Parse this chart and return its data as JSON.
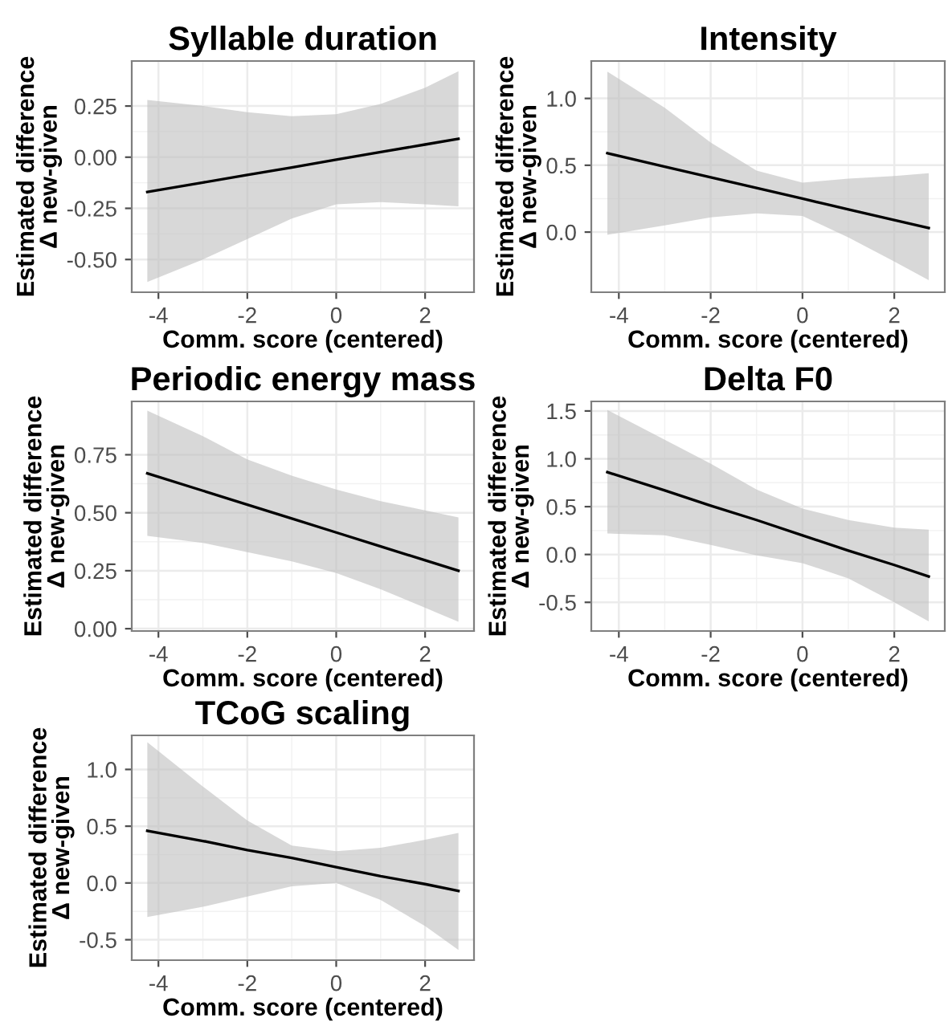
{
  "chart_data": [
    {
      "type": "line",
      "title": "Syllable duration",
      "xlabel": "Comm. score (centered)",
      "ylabel": "Estimated difference\nΔ new-given",
      "xlim": [
        -4.6,
        3.1
      ],
      "xticks": [
        -4,
        -2,
        0,
        2
      ],
      "ylim": [
        -0.66,
        0.47
      ],
      "yticks": [
        {
          "value": 0.25,
          "label": "0.25"
        },
        {
          "value": 0,
          "label": "0.00"
        },
        {
          "value": -0.25,
          "label": "-0.25"
        },
        {
          "value": -0.5,
          "label": "-0.50"
        }
      ],
      "grid": true,
      "series": [
        {
          "color": "#000000",
          "x": [
            -4.25,
            -3,
            -2,
            -1,
            0,
            1,
            2,
            2.75
          ],
          "values": [
            -0.17,
            -0.124,
            -0.087,
            -0.05,
            -0.012,
            0.025,
            0.062,
            0.09
          ],
          "upper": [
            0.28,
            0.25,
            0.22,
            0.2,
            0.21,
            0.26,
            0.34,
            0.42
          ],
          "lower": [
            -0.61,
            -0.5,
            -0.4,
            -0.3,
            -0.23,
            -0.22,
            -0.23,
            -0.24
          ]
        }
      ]
    },
    {
      "type": "line",
      "title": "Intensity",
      "xlabel": "Comm. score (centered)",
      "ylabel": "Estimated difference\nΔ new-given",
      "xlim": [
        -4.6,
        3.1
      ],
      "xticks": [
        -4,
        -2,
        0,
        2
      ],
      "ylim": [
        -0.45,
        1.28
      ],
      "yticks": [
        {
          "value": 0,
          "label": "0.0"
        },
        {
          "value": 0.5,
          "label": "0.5"
        },
        {
          "value": 1,
          "label": "1.0"
        }
      ],
      "grid": true,
      "series": [
        {
          "color": "#000000",
          "x": [
            -4.25,
            -3,
            -2,
            -1,
            0,
            1,
            2,
            2.75
          ],
          "values": [
            0.59,
            0.49,
            0.41,
            0.33,
            0.25,
            0.17,
            0.09,
            0.03
          ],
          "upper": [
            1.2,
            0.93,
            0.67,
            0.46,
            0.37,
            0.4,
            0.42,
            0.44
          ],
          "lower": [
            -0.02,
            0.05,
            0.11,
            0.14,
            0.12,
            -0.04,
            -0.22,
            -0.36
          ]
        }
      ]
    },
    {
      "type": "line",
      "title": "Periodic energy mass",
      "xlabel": "Comm. score (centered)",
      "ylabel": "Estimated difference\nΔ new-given",
      "xlim": [
        -4.6,
        3.1
      ],
      "xticks": [
        -4,
        -2,
        0,
        2
      ],
      "ylim": [
        -0.01,
        0.98
      ],
      "yticks": [
        {
          "value": 0,
          "label": "0.00"
        },
        {
          "value": 0.25,
          "label": "0.25"
        },
        {
          "value": 0.5,
          "label": "0.50"
        },
        {
          "value": 0.75,
          "label": "0.75"
        }
      ],
      "grid": true,
      "series": [
        {
          "color": "#000000",
          "x": [
            -4.25,
            -3,
            -2,
            -1,
            0,
            1,
            2,
            2.75
          ],
          "values": [
            0.67,
            0.595,
            0.535,
            0.475,
            0.415,
            0.355,
            0.295,
            0.25
          ],
          "upper": [
            0.94,
            0.83,
            0.73,
            0.66,
            0.6,
            0.55,
            0.51,
            0.48
          ],
          "lower": [
            0.4,
            0.37,
            0.33,
            0.29,
            0.24,
            0.17,
            0.09,
            0.03
          ]
        }
      ]
    },
    {
      "type": "line",
      "title": "Delta F0",
      "xlabel": "Comm. score (centered)",
      "ylabel": "Estimated difference\nΔ new-given",
      "xlim": [
        -4.6,
        3.1
      ],
      "xticks": [
        -4,
        -2,
        0,
        2
      ],
      "ylim": [
        -0.8,
        1.6
      ],
      "yticks": [
        {
          "value": -0.5,
          "label": "-0.5"
        },
        {
          "value": 0,
          "label": "0.0"
        },
        {
          "value": 0.5,
          "label": "0.5"
        },
        {
          "value": 1,
          "label": "1.0"
        },
        {
          "value": 1.5,
          "label": "1.5"
        }
      ],
      "grid": true,
      "series": [
        {
          "color": "#000000",
          "x": [
            -4.25,
            -3,
            -2,
            -1,
            0,
            1,
            2,
            2.75
          ],
          "values": [
            0.86,
            0.67,
            0.51,
            0.36,
            0.2,
            0.04,
            -0.11,
            -0.23
          ],
          "upper": [
            1.51,
            1.2,
            0.95,
            0.68,
            0.48,
            0.36,
            0.28,
            0.26
          ],
          "lower": [
            0.22,
            0.2,
            0.1,
            -0.01,
            -0.09,
            -0.25,
            -0.5,
            -0.7
          ]
        }
      ]
    },
    {
      "type": "line",
      "title": "TCoG scaling",
      "xlabel": "Comm. score (centered)",
      "ylabel": "Estimated difference\nΔ new-given",
      "xlim": [
        -4.6,
        3.1
      ],
      "xticks": [
        -4,
        -2,
        0,
        2
      ],
      "ylim": [
        -0.68,
        1.3
      ],
      "yticks": [
        {
          "value": -0.5,
          "label": "-0.5"
        },
        {
          "value": 0,
          "label": "0.0"
        },
        {
          "value": 0.5,
          "label": "0.5"
        },
        {
          "value": 1,
          "label": "1.0"
        }
      ],
      "grid": true,
      "series": [
        {
          "color": "#000000",
          "x": [
            -4.25,
            -3,
            -2,
            -1,
            0,
            1,
            2,
            2.75
          ],
          "values": [
            0.46,
            0.37,
            0.29,
            0.22,
            0.14,
            0.06,
            -0.01,
            -0.07
          ],
          "upper": [
            1.24,
            0.85,
            0.55,
            0.33,
            0.28,
            0.31,
            0.38,
            0.44
          ],
          "lower": [
            -0.3,
            -0.21,
            -0.12,
            -0.03,
            0.0,
            -0.15,
            -0.38,
            -0.59
          ]
        }
      ]
    }
  ]
}
